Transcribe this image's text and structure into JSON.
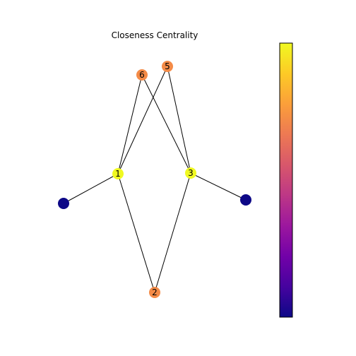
{
  "title": "Closeness Centrality",
  "colormap": {
    "name": "plasma",
    "stops": [
      "#0d0887",
      "#46039f",
      "#7201a8",
      "#9c179e",
      "#bd3786",
      "#d8576b",
      "#ed7953",
      "#fb9f3a",
      "#fdca26",
      "#f0f921"
    ]
  },
  "nodes": [
    {
      "id": "1",
      "label": "1",
      "value": 1.0
    },
    {
      "id": "2",
      "label": "2",
      "value": 0.72
    },
    {
      "id": "3",
      "label": "3",
      "value": 1.0
    },
    {
      "id": "5",
      "label": "5",
      "value": 0.72
    },
    {
      "id": "6",
      "label": "6",
      "value": 0.72
    },
    {
      "id": "A",
      "label": "",
      "value": 0.0
    },
    {
      "id": "B",
      "label": "",
      "value": 0.0
    }
  ],
  "edges": [
    [
      "1",
      "6"
    ],
    [
      "1",
      "5"
    ],
    [
      "1",
      "A"
    ],
    [
      "1",
      "2"
    ],
    [
      "3",
      "6"
    ],
    [
      "3",
      "5"
    ],
    [
      "3",
      "B"
    ],
    [
      "3",
      "2"
    ]
  ]
}
